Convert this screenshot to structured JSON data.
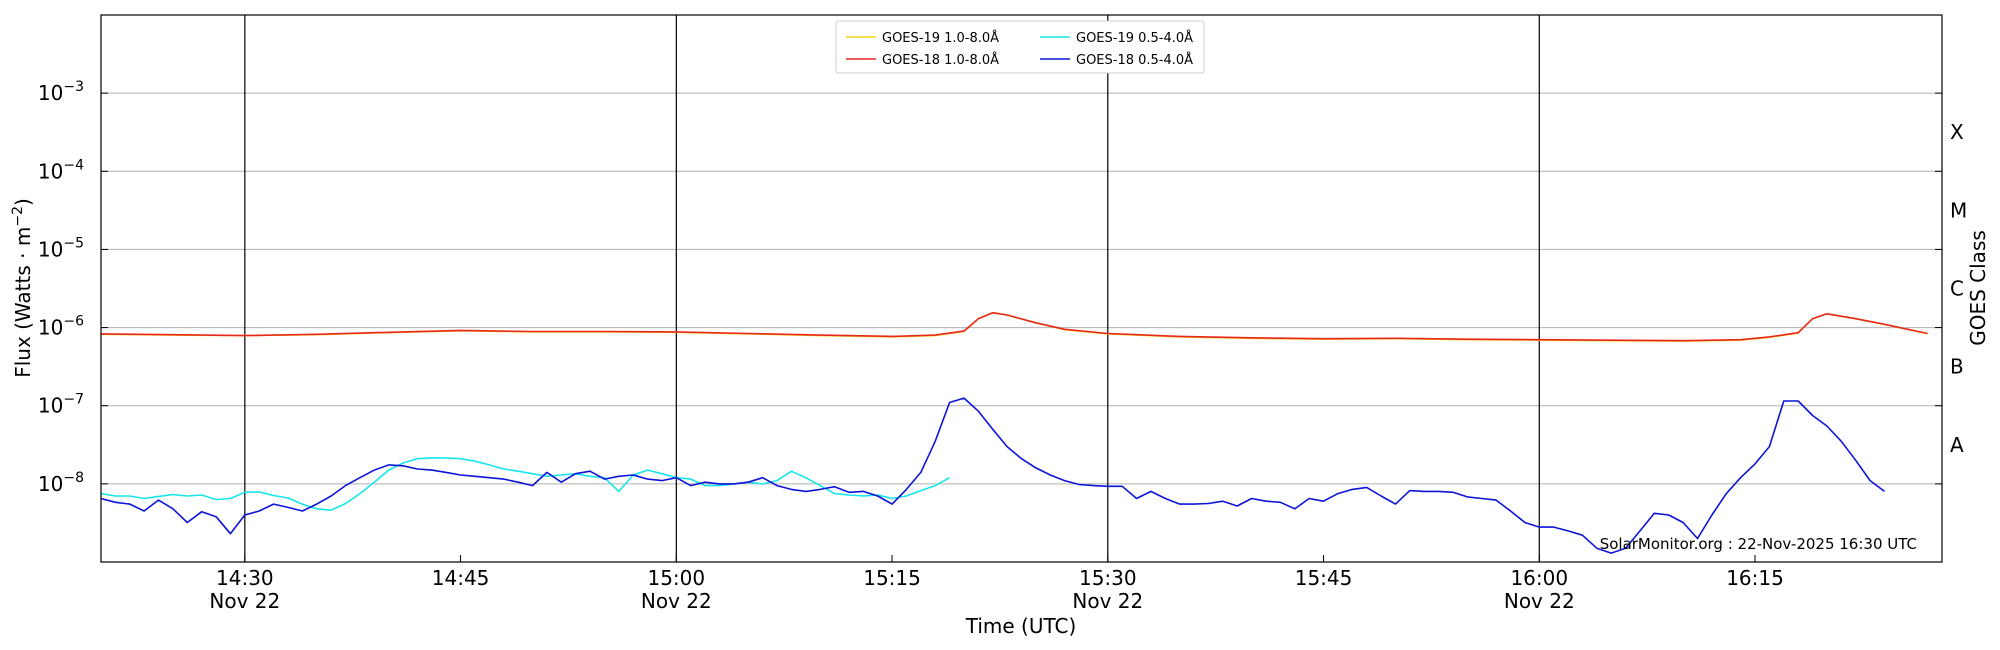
{
  "chart_data": {
    "type": "line",
    "xlabel": "Time (UTC)",
    "ylabel_main": "Flux (Watts · m",
    "ylabel_sup": "−2",
    "ylabel_tail": ")",
    "right_axis_label": "GOES Class",
    "y_scale": "log",
    "xlim": [
      "14:20",
      "16:28"
    ],
    "ylim": [
      1e-09,
      0.01
    ],
    "grid": "horizontal",
    "legend_position": "top-center",
    "x_ticks": [
      {
        "time": "14:30",
        "line1": "14:30",
        "line2": "Nov 22",
        "vline": true
      },
      {
        "time": "14:45",
        "line1": "14:45",
        "line2": "",
        "vline": false
      },
      {
        "time": "15:00",
        "line1": "15:00",
        "line2": "Nov 22",
        "vline": true
      },
      {
        "time": "15:15",
        "line1": "15:15",
        "line2": "",
        "vline": false
      },
      {
        "time": "15:30",
        "line1": "15:30",
        "line2": "Nov 22",
        "vline": true
      },
      {
        "time": "15:45",
        "line1": "15:45",
        "line2": "",
        "vline": false
      },
      {
        "time": "16:00",
        "line1": "16:00",
        "line2": "Nov 22",
        "vline": true
      },
      {
        "time": "16:15",
        "line1": "16:15",
        "line2": "",
        "vline": false
      }
    ],
    "y_ticks": [
      {
        "value": 0.001,
        "base": "10",
        "exp": "−3"
      },
      {
        "value": 0.0001,
        "base": "10",
        "exp": "−4"
      },
      {
        "value": 1e-05,
        "base": "10",
        "exp": "−5"
      },
      {
        "value": 1e-06,
        "base": "10",
        "exp": "−6"
      },
      {
        "value": 1e-07,
        "base": "10",
        "exp": "−7"
      },
      {
        "value": 1e-08,
        "base": "10",
        "exp": "−8"
      }
    ],
    "goes_classes": [
      {
        "label": "X",
        "value": 0.000316
      },
      {
        "label": "M",
        "value": 3.16e-05
      },
      {
        "label": "C",
        "value": 3.16e-06
      },
      {
        "label": "B",
        "value": 3.16e-07
      },
      {
        "label": "A",
        "value": 3.16e-08
      }
    ],
    "annotation": "SolarMonitor.org : 22-Nov-2025 16:30 UTC",
    "series": [
      {
        "name": "GOES-19 1.0-8.0Å",
        "color": "#f2d51b",
        "points": [
          [
            "14:20",
            8.2e-07
          ],
          [
            "14:25",
            8e-07
          ],
          [
            "14:30",
            7.9e-07
          ],
          [
            "14:35",
            8.1e-07
          ],
          [
            "14:40",
            8.6e-07
          ],
          [
            "14:45",
            9.1e-07
          ],
          [
            "14:50",
            8.8e-07
          ],
          [
            "14:55",
            8.8e-07
          ],
          [
            "15:00",
            8.7e-07
          ],
          [
            "15:05",
            8.3e-07
          ],
          [
            "15:10",
            7.9e-07
          ],
          [
            "15:15",
            7.6e-07
          ],
          [
            "15:18",
            7.9e-07
          ],
          [
            "15:20",
            8.9e-07
          ],
          [
            "15:21",
            1.3e-06
          ],
          [
            "15:22",
            1.55e-06
          ],
          [
            "15:23",
            1.45e-06
          ],
          [
            "15:25",
            1.15e-06
          ],
          [
            "15:27",
            9.4e-07
          ],
          [
            "15:30",
            8.3e-07
          ],
          [
            "15:35",
            7.6e-07
          ],
          [
            "15:40",
            7.3e-07
          ],
          [
            "15:45",
            7.1e-07
          ],
          [
            "15:50",
            7.2e-07
          ],
          [
            "15:55",
            7e-07
          ],
          [
            "16:00",
            6.9e-07
          ],
          [
            "16:05",
            6.8e-07
          ],
          [
            "16:10",
            6.7e-07
          ],
          [
            "16:14",
            6.9e-07
          ],
          [
            "16:16",
            7.5e-07
          ],
          [
            "16:18",
            8.5e-07
          ],
          [
            "16:19",
            1.3e-06
          ],
          [
            "16:20",
            1.5e-06
          ],
          [
            "16:22",
            1.3e-06
          ],
          [
            "16:24",
            1.1e-06
          ],
          [
            "16:27",
            8.3e-07
          ]
        ]
      },
      {
        "name": "GOES-18 1.0-8.0Å",
        "color": "#e8281e",
        "points": [
          [
            "14:20",
            8.3e-07
          ],
          [
            "14:25",
            8.1e-07
          ],
          [
            "14:30",
            7.9e-07
          ],
          [
            "14:35",
            8.2e-07
          ],
          [
            "14:40",
            8.7e-07
          ],
          [
            "14:45",
            9.2e-07
          ],
          [
            "14:50",
            8.9e-07
          ],
          [
            "14:55",
            8.9e-07
          ],
          [
            "15:00",
            8.8e-07
          ],
          [
            "15:05",
            8.4e-07
          ],
          [
            "15:10",
            8e-07
          ],
          [
            "15:15",
            7.7e-07
          ],
          [
            "15:18",
            8e-07
          ],
          [
            "15:20",
            9e-07
          ],
          [
            "15:21",
            1.3e-06
          ],
          [
            "15:22",
            1.55e-06
          ],
          [
            "15:23",
            1.45e-06
          ],
          [
            "15:25",
            1.15e-06
          ],
          [
            "15:27",
            9.5e-07
          ],
          [
            "15:30",
            8.4e-07
          ],
          [
            "15:35",
            7.7e-07
          ],
          [
            "15:40",
            7.4e-07
          ],
          [
            "15:45",
            7.2e-07
          ],
          [
            "15:50",
            7.3e-07
          ],
          [
            "15:55",
            7.1e-07
          ],
          [
            "16:00",
            7e-07
          ],
          [
            "16:05",
            6.9e-07
          ],
          [
            "16:10",
            6.8e-07
          ],
          [
            "16:14",
            7e-07
          ],
          [
            "16:16",
            7.6e-07
          ],
          [
            "16:18",
            8.6e-07
          ],
          [
            "16:19",
            1.3e-06
          ],
          [
            "16:20",
            1.5e-06
          ],
          [
            "16:22",
            1.3e-06
          ],
          [
            "16:24",
            1.1e-06
          ],
          [
            "16:27",
            8.4e-07
          ]
        ]
      },
      {
        "name": "GOES-19 0.5-4.0Å",
        "color": "#16e6ea",
        "points": [
          [
            "14:20",
            7.5e-09
          ],
          [
            "14:21",
            7e-09
          ],
          [
            "14:22",
            7e-09
          ],
          [
            "14:23",
            6.5e-09
          ],
          [
            "14:24",
            6.9e-09
          ],
          [
            "14:25",
            7.3e-09
          ],
          [
            "14:26",
            7e-09
          ],
          [
            "14:27",
            7.2e-09
          ],
          [
            "14:28",
            6.3e-09
          ],
          [
            "14:29",
            6.5e-09
          ],
          [
            "14:30",
            7.8e-09
          ],
          [
            "14:31",
            7.9e-09
          ],
          [
            "14:32",
            7.1e-09
          ],
          [
            "14:33",
            6.6e-09
          ],
          [
            "14:34",
            5.5e-09
          ],
          [
            "14:35",
            4.8e-09
          ],
          [
            "14:36",
            4.6e-09
          ],
          [
            "14:37",
            5.6e-09
          ],
          [
            "14:38",
            7.5e-09
          ],
          [
            "14:39",
            1.05e-08
          ],
          [
            "14:40",
            1.5e-08
          ],
          [
            "14:41",
            1.85e-08
          ],
          [
            "14:42",
            2.1e-08
          ],
          [
            "14:43",
            2.15e-08
          ],
          [
            "14:44",
            2.15e-08
          ],
          [
            "14:45",
            2.1e-08
          ],
          [
            "14:46",
            1.95e-08
          ],
          [
            "14:47",
            1.75e-08
          ],
          [
            "14:48",
            1.55e-08
          ],
          [
            "14:49",
            1.45e-08
          ],
          [
            "14:50",
            1.35e-08
          ],
          [
            "14:51",
            1.25e-08
          ],
          [
            "14:52",
            1.3e-08
          ],
          [
            "14:53",
            1.35e-08
          ],
          [
            "14:54",
            1.25e-08
          ],
          [
            "14:55",
            1.2e-08
          ],
          [
            "14:56",
            8e-09
          ],
          [
            "14:57",
            1.3e-08
          ],
          [
            "14:58",
            1.5e-08
          ],
          [
            "14:59",
            1.35e-08
          ],
          [
            "15:00",
            1.2e-08
          ],
          [
            "15:01",
            1.15e-08
          ],
          [
            "15:02",
            9.5e-09
          ],
          [
            "15:03",
            9.5e-09
          ],
          [
            "15:04",
            1e-08
          ],
          [
            "15:05",
            1.05e-08
          ],
          [
            "15:06",
            1e-08
          ],
          [
            "15:07",
            1.1e-08
          ],
          [
            "15:08",
            1.45e-08
          ],
          [
            "15:09",
            1.2e-08
          ],
          [
            "15:10",
            9.5e-09
          ],
          [
            "15:11",
            7.5e-09
          ],
          [
            "15:12",
            7.2e-09
          ],
          [
            "15:13",
            7e-09
          ],
          [
            "15:14",
            7.2e-09
          ],
          [
            "15:15",
            6.5e-09
          ],
          [
            "15:16",
            7e-09
          ],
          [
            "15:17",
            8.2e-09
          ],
          [
            "15:18",
            9.5e-09
          ],
          [
            "15:19",
            1.2e-08
          ]
        ]
      },
      {
        "name": "GOES-18 0.5-4.0Å",
        "color": "#0d14d8",
        "points": [
          [
            "14:20",
            6.5e-09
          ],
          [
            "14:21",
            5.8e-09
          ],
          [
            "14:22",
            5.5e-09
          ],
          [
            "14:23",
            4.5e-09
          ],
          [
            "14:24",
            6.2e-09
          ],
          [
            "14:25",
            4.8e-09
          ],
          [
            "14:26",
            3.2e-09
          ],
          [
            "14:27",
            4.4e-09
          ],
          [
            "14:28",
            3.8e-09
          ],
          [
            "14:29",
            2.3e-09
          ],
          [
            "14:30",
            4e-09
          ],
          [
            "14:31",
            4.5e-09
          ],
          [
            "14:32",
            5.5e-09
          ],
          [
            "14:33",
            5e-09
          ],
          [
            "14:34",
            4.5e-09
          ],
          [
            "14:35",
            5.5e-09
          ],
          [
            "14:36",
            7e-09
          ],
          [
            "14:37",
            9.5e-09
          ],
          [
            "14:38",
            1.2e-08
          ],
          [
            "14:39",
            1.5e-08
          ],
          [
            "14:40",
            1.75e-08
          ],
          [
            "14:41",
            1.7e-08
          ],
          [
            "14:42",
            1.55e-08
          ],
          [
            "14:43",
            1.5e-08
          ],
          [
            "14:44",
            1.4e-08
          ],
          [
            "14:45",
            1.3e-08
          ],
          [
            "14:46",
            1.25e-08
          ],
          [
            "14:47",
            1.2e-08
          ],
          [
            "14:48",
            1.15e-08
          ],
          [
            "14:49",
            1.05e-08
          ],
          [
            "14:50",
            9.5e-09
          ],
          [
            "14:51",
            1.4e-08
          ],
          [
            "14:52",
            1.05e-08
          ],
          [
            "14:53",
            1.35e-08
          ],
          [
            "14:54",
            1.45e-08
          ],
          [
            "14:55",
            1.15e-08
          ],
          [
            "14:56",
            1.25e-08
          ],
          [
            "14:57",
            1.3e-08
          ],
          [
            "14:58",
            1.15e-08
          ],
          [
            "14:59",
            1.1e-08
          ],
          [
            "15:00",
            1.2e-08
          ],
          [
            "15:01",
            9.5e-09
          ],
          [
            "15:02",
            1.05e-08
          ],
          [
            "15:03",
            1e-08
          ],
          [
            "15:04",
            1e-08
          ],
          [
            "15:05",
            1.05e-08
          ],
          [
            "15:06",
            1.2e-08
          ],
          [
            "15:07",
            9.5e-09
          ],
          [
            "15:08",
            8.5e-09
          ],
          [
            "15:09",
            8e-09
          ],
          [
            "15:10",
            8.5e-09
          ],
          [
            "15:11",
            9.2e-09
          ],
          [
            "15:12",
            7.8e-09
          ],
          [
            "15:13",
            8e-09
          ],
          [
            "15:14",
            7e-09
          ],
          [
            "15:15",
            5.5e-09
          ],
          [
            "15:16",
            8.5e-09
          ],
          [
            "15:17",
            1.4e-08
          ],
          [
            "15:18",
            3.5e-08
          ],
          [
            "15:19",
            1.1e-07
          ],
          [
            "15:20",
            1.25e-07
          ],
          [
            "15:21",
            8.5e-08
          ],
          [
            "15:22",
            5e-08
          ],
          [
            "15:23",
            3e-08
          ],
          [
            "15:24",
            2.1e-08
          ],
          [
            "15:25",
            1.6e-08
          ],
          [
            "15:26",
            1.3e-08
          ],
          [
            "15:27",
            1.1e-08
          ],
          [
            "15:28",
            9.8e-09
          ],
          [
            "15:29",
            9.5e-09
          ],
          [
            "15:30",
            9.3e-09
          ],
          [
            "15:31",
            9.3e-09
          ],
          [
            "15:32",
            6.5e-09
          ],
          [
            "15:33",
            8e-09
          ],
          [
            "15:34",
            6.5e-09
          ],
          [
            "15:35",
            5.5e-09
          ],
          [
            "15:36",
            5.5e-09
          ],
          [
            "15:37",
            5.6e-09
          ],
          [
            "15:38",
            6e-09
          ],
          [
            "15:39",
            5.2e-09
          ],
          [
            "15:40",
            6.5e-09
          ],
          [
            "15:41",
            6e-09
          ],
          [
            "15:42",
            5.8e-09
          ],
          [
            "15:43",
            4.8e-09
          ],
          [
            "15:44",
            6.5e-09
          ],
          [
            "15:45",
            6e-09
          ],
          [
            "15:46",
            7.5e-09
          ],
          [
            "15:47",
            8.5e-09
          ],
          [
            "15:48",
            9e-09
          ],
          [
            "15:49",
            7e-09
          ],
          [
            "15:50",
            5.5e-09
          ],
          [
            "15:51",
            8.2e-09
          ],
          [
            "15:52",
            8e-09
          ],
          [
            "15:53",
            8e-09
          ],
          [
            "15:54",
            7.8e-09
          ],
          [
            "15:55",
            6.8e-09
          ],
          [
            "15:56",
            6.5e-09
          ],
          [
            "15:57",
            6.2e-09
          ],
          [
            "15:58",
            4.5e-09
          ],
          [
            "15:59",
            3.2e-09
          ],
          [
            "16:00",
            2.8e-09
          ],
          [
            "16:01",
            2.8e-09
          ],
          [
            "16:02",
            2.5e-09
          ],
          [
            "16:03",
            2.2e-09
          ],
          [
            "16:04",
            1.5e-09
          ],
          [
            "16:05",
            1.3e-09
          ],
          [
            "16:06",
            1.5e-09
          ],
          [
            "16:07",
            2.5e-09
          ],
          [
            "16:08",
            4.2e-09
          ],
          [
            "16:09",
            4e-09
          ],
          [
            "16:10",
            3.2e-09
          ],
          [
            "16:11",
            2e-09
          ],
          [
            "16:12",
            4e-09
          ],
          [
            "16:13",
            7.5e-09
          ],
          [
            "16:14",
            1.2e-08
          ],
          [
            "16:15",
            1.8e-08
          ],
          [
            "16:16",
            3e-08
          ],
          [
            "16:17",
            1.15e-07
          ],
          [
            "16:18",
            1.15e-07
          ],
          [
            "16:19",
            7.5e-08
          ],
          [
            "16:20",
            5.5e-08
          ],
          [
            "16:21",
            3.5e-08
          ],
          [
            "16:22",
            2e-08
          ],
          [
            "16:23",
            1.1e-08
          ],
          [
            "16:24",
            8e-09
          ]
        ]
      }
    ]
  }
}
